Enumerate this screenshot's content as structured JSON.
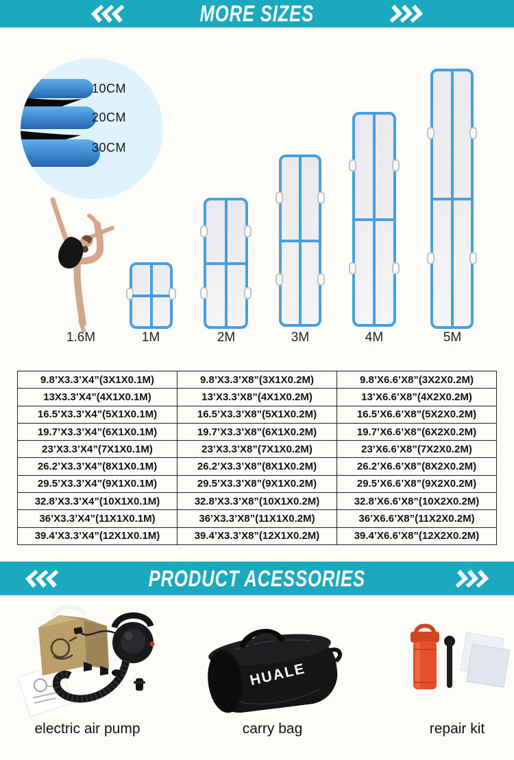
{
  "page": {
    "accent": "#1aa9bf",
    "background": "#fdfcf8"
  },
  "banner_more_sizes": {
    "title": "MORE SIZES"
  },
  "banner_accessories": {
    "title": "PRODUCT ACESSORIES"
  },
  "thickness": {
    "labels": [
      "10CM",
      "20CM",
      "30CM"
    ]
  },
  "sizes_row": {
    "labels": [
      "1.6M",
      "1M",
      "2M",
      "3M",
      "4M",
      "5M"
    ]
  },
  "size_table": {
    "rows": [
      [
        "9.8’X3.3’X4”(3X1X0.1M)",
        "9.8’X3.3’X8”(3X1X0.2M)",
        "9.8’X6.6’X8”(3X2X0.2M)"
      ],
      [
        "13X3.3’X4”(4X1X0.1M)",
        "13’X3.3’X8”(4X1X0.2M)",
        "13’X6.6’X8”(4X2X0.2M)"
      ],
      [
        "16.5’X3.3’X4”(5X1X0.1M)",
        "16.5’X3.3’X8”(5X1X0.2M)",
        "16.5’X6.6’X8”(5X2X0.2M)"
      ],
      [
        "19.7’X3.3’X4”(6X1X0.1M)",
        "19.7’X3.3’X8”(6X1X0.2M)",
        "19.7’X6.6’X8”(6X2X0.2M)"
      ],
      [
        "23’X3.3’X4”(7X1X0.1M)",
        "23’X3.3’X8”(7X1X0.2M)",
        "23’X6.6’X8”(7X2X0.2M)"
      ],
      [
        "26.2’X3.3’X4”(8X1X0.1M)",
        "26.2’X3.3’X8”(8X1X0.2M)",
        "26.2’X6.6’X8”(8X2X0.2M)"
      ],
      [
        "29.5’X3.3’X4”(9X1X0.1M)",
        "29.5’X3.3’X8”(9X1X0.2M)",
        "29.5’X6.6’X8”(9X2X0.2M)"
      ],
      [
        "32.8’X3.3’X4”(10X1X0.1M)",
        "32.8’X3.3’X8”(10X1X0.2M)",
        "32.8’X6.6’X8”(10X2X0.2M)"
      ],
      [
        "36’X3.3’X4”(11X1X0.1M)",
        "36’X3.3’X8”(11X1X0.2M)",
        "36’X6.6’X8”(11X2X0.2M)"
      ],
      [
        "39.4’X3.3’X4”(12X1X0.1M)",
        "39.4’X3.3’X8”(12X1X0.2M)",
        "39.4’X6.6’X8”(12X2X0.2M)"
      ]
    ]
  },
  "accessories": {
    "items": [
      {
        "label": "electric air pump"
      },
      {
        "label": "carry bag",
        "brand": "HUALE"
      },
      {
        "label": "repair kit"
      }
    ]
  }
}
